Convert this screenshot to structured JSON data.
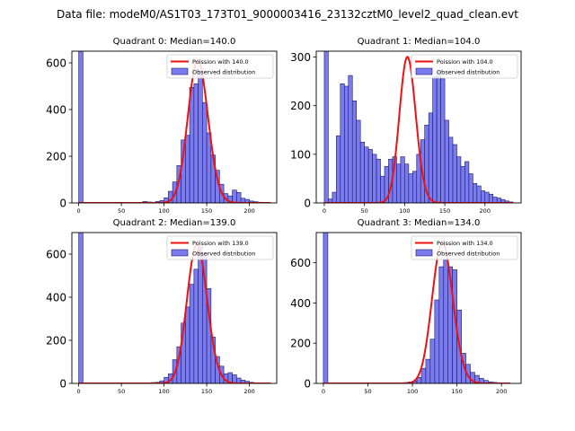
{
  "suptitle": "Data file: modeM0/AS1T03_173T01_9000003416_23132cztM0_level2_quad_clean.evt",
  "chart_data": [
    {
      "type": "bar",
      "title": "Quadrant 0: Median=140.0",
      "legend": [
        "Poission with 140.0",
        "Observed distribution"
      ],
      "legend_placement": "top-right",
      "xlim": [
        -8,
        232
      ],
      "ylim": [
        0,
        650
      ],
      "xticks": [
        0,
        50,
        100,
        150,
        200
      ],
      "yticks": [
        0,
        200,
        400,
        600
      ],
      "bin_width": 5,
      "bins": [
        [
          0,
          650
        ],
        [
          75,
          6
        ],
        [
          80,
          4
        ],
        [
          85,
          3
        ],
        [
          90,
          6
        ],
        [
          95,
          10
        ],
        [
          100,
          22
        ],
        [
          105,
          50
        ],
        [
          110,
          90
        ],
        [
          115,
          160
        ],
        [
          120,
          270
        ],
        [
          125,
          290
        ],
        [
          130,
          495
        ],
        [
          135,
          510
        ],
        [
          140,
          570
        ],
        [
          145,
          430
        ],
        [
          150,
          300
        ],
        [
          155,
          205
        ],
        [
          160,
          140
        ],
        [
          165,
          80
        ],
        [
          170,
          40
        ],
        [
          175,
          30
        ],
        [
          180,
          55
        ],
        [
          185,
          45
        ],
        [
          190,
          20
        ],
        [
          195,
          15
        ],
        [
          200,
          8
        ],
        [
          205,
          5
        ],
        [
          210,
          3
        ]
      ],
      "poisson": {
        "mu": 140.0,
        "peak": 610,
        "x_range": [
          0,
          225
        ]
      }
    },
    {
      "type": "bar",
      "title": "Quadrant 1: Median=104.0",
      "legend": [
        "Poission with 104.0",
        "Observed distribution"
      ],
      "legend_placement": "top-right",
      "xlim": [
        -10,
        245
      ],
      "ylim": [
        0,
        312
      ],
      "xticks": [
        0,
        50,
        100,
        150,
        200
      ],
      "yticks": [
        0,
        100,
        200,
        300
      ],
      "bin_width": 5,
      "bins": [
        [
          0,
          312
        ],
        [
          5,
          8
        ],
        [
          10,
          22
        ],
        [
          15,
          138
        ],
        [
          20,
          245
        ],
        [
          25,
          240
        ],
        [
          30,
          262
        ],
        [
          35,
          210
        ],
        [
          40,
          170
        ],
        [
          45,
          125
        ],
        [
          50,
          115
        ],
        [
          55,
          110
        ],
        [
          60,
          100
        ],
        [
          65,
          90
        ],
        [
          70,
          55
        ],
        [
          75,
          75
        ],
        [
          80,
          90
        ],
        [
          85,
          95
        ],
        [
          90,
          80
        ],
        [
          95,
          95
        ],
        [
          100,
          80
        ],
        [
          105,
          60
        ],
        [
          110,
          65
        ],
        [
          115,
          100
        ],
        [
          120,
          130
        ],
        [
          125,
          160
        ],
        [
          130,
          185
        ],
        [
          135,
          260
        ],
        [
          140,
          270
        ],
        [
          145,
          255
        ],
        [
          150,
          170
        ],
        [
          155,
          135
        ],
        [
          160,
          120
        ],
        [
          165,
          95
        ],
        [
          170,
          75
        ],
        [
          175,
          85
        ],
        [
          180,
          60
        ],
        [
          185,
          40
        ],
        [
          190,
          35
        ],
        [
          195,
          25
        ],
        [
          200,
          22
        ],
        [
          205,
          18
        ],
        [
          210,
          12
        ],
        [
          215,
          10
        ],
        [
          220,
          7
        ],
        [
          225,
          4
        ],
        [
          230,
          2
        ]
      ],
      "poisson": {
        "mu": 104.0,
        "peak": 300,
        "x_range": [
          0,
          235
        ]
      }
    },
    {
      "type": "bar",
      "title": "Quadrant 2: Median=139.0",
      "legend": [
        "Poission with 139.0",
        "Observed distribution"
      ],
      "legend_placement": "top-right",
      "xlim": [
        -8,
        232
      ],
      "ylim": [
        0,
        700
      ],
      "xticks": [
        0,
        50,
        100,
        150,
        200
      ],
      "yticks": [
        0,
        200,
        400,
        600
      ],
      "bin_width": 5,
      "bins": [
        [
          0,
          700
        ],
        [
          75,
          3
        ],
        [
          85,
          4
        ],
        [
          90,
          5
        ],
        [
          95,
          12
        ],
        [
          100,
          28
        ],
        [
          105,
          45
        ],
        [
          110,
          110
        ],
        [
          115,
          170
        ],
        [
          120,
          280
        ],
        [
          125,
          355
        ],
        [
          130,
          460
        ],
        [
          135,
          530
        ],
        [
          140,
          635
        ],
        [
          145,
          600
        ],
        [
          150,
          440
        ],
        [
          155,
          215
        ],
        [
          160,
          125
        ],
        [
          165,
          80
        ],
        [
          170,
          45
        ],
        [
          175,
          50
        ],
        [
          180,
          40
        ],
        [
          185,
          25
        ],
        [
          190,
          15
        ],
        [
          195,
          10
        ],
        [
          200,
          5
        ],
        [
          205,
          3
        ]
      ],
      "poisson": {
        "mu": 139.0,
        "peak": 645,
        "x_range": [
          0,
          225
        ]
      }
    },
    {
      "type": "bar",
      "title": "Quadrant 3: Median=134.0",
      "legend": [
        "Poission with 134.0",
        "Observed distribution"
      ],
      "legend_placement": "top-right",
      "xlim": [
        -8,
        222
      ],
      "ylim": [
        0,
        750
      ],
      "xticks": [
        0,
        50,
        100,
        150,
        200
      ],
      "yticks": [
        0,
        200,
        400,
        600
      ],
      "bin_width": 5,
      "bins": [
        [
          0,
          750
        ],
        [
          80,
          3
        ],
        [
          90,
          4
        ],
        [
          95,
          7
        ],
        [
          100,
          12
        ],
        [
          105,
          30
        ],
        [
          110,
          75
        ],
        [
          115,
          120
        ],
        [
          120,
          220
        ],
        [
          125,
          415
        ],
        [
          130,
          580
        ],
        [
          135,
          615
        ],
        [
          140,
          580
        ],
        [
          145,
          565
        ],
        [
          150,
          365
        ],
        [
          155,
          150
        ],
        [
          160,
          95
        ],
        [
          165,
          55
        ],
        [
          170,
          40
        ],
        [
          175,
          25
        ],
        [
          180,
          15
        ],
        [
          185,
          8
        ],
        [
          190,
          5
        ],
        [
          195,
          3
        ],
        [
          200,
          2
        ]
      ],
      "poisson": {
        "mu": 134.0,
        "peak": 700,
        "x_range": [
          0,
          210
        ]
      }
    }
  ],
  "colors": {
    "bar_fill": "#7b7bf0",
    "bar_edge": "#1a1a66",
    "poisson_line": "#ee1111",
    "axis": "#000000",
    "legend_edge": "#cccccc"
  }
}
